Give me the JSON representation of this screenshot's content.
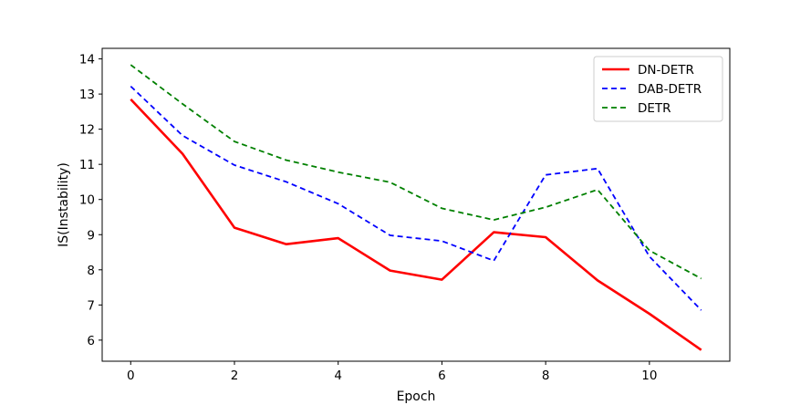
{
  "chart_data": {
    "type": "line",
    "title": "",
    "xlabel": "Epoch",
    "ylabel": "IS(Instability)",
    "x": [
      0,
      1,
      2,
      3,
      4,
      5,
      6,
      7,
      8,
      9,
      10,
      11
    ],
    "xlim": [
      -0.55,
      11.55
    ],
    "ylim": [
      5.4,
      14.3
    ],
    "xticks": [
      0,
      2,
      4,
      6,
      8,
      10
    ],
    "yticks": [
      6,
      7,
      8,
      9,
      10,
      11,
      12,
      13,
      14
    ],
    "grid": false,
    "legend_position": "top-right",
    "series": [
      {
        "name": "DN-DETR",
        "color": "#ff0000",
        "line_style": "solid",
        "values": [
          12.85,
          11.3,
          9.2,
          8.73,
          8.9,
          7.98,
          7.72,
          9.07,
          8.93,
          7.7,
          6.75,
          5.72
        ]
      },
      {
        "name": "DAB-DETR",
        "color": "#0000ff",
        "line_style": "dashed",
        "values": [
          13.22,
          11.82,
          10.98,
          10.5,
          9.88,
          8.98,
          8.82,
          8.26,
          10.7,
          10.88,
          8.38,
          6.85
        ]
      },
      {
        "name": "DETR",
        "color": "#008000",
        "line_style": "dashed",
        "values": [
          13.83,
          12.72,
          11.65,
          11.12,
          10.78,
          10.49,
          9.75,
          9.42,
          9.78,
          10.28,
          8.55,
          7.75
        ]
      }
    ]
  }
}
